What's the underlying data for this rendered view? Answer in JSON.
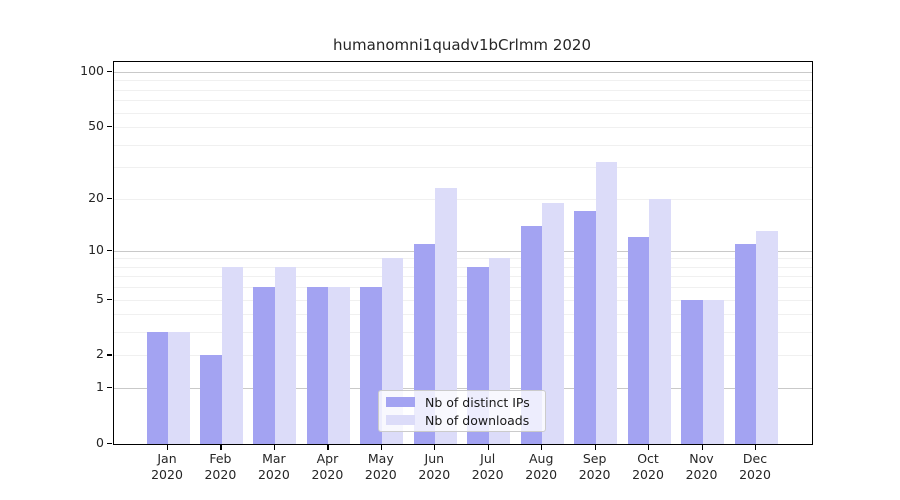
{
  "chart_data": {
    "type": "bar",
    "title": "humanomni1quadv1bCrlmm 2020",
    "categories": [
      "Jan",
      "Feb",
      "Mar",
      "Apr",
      "May",
      "Jun",
      "Jul",
      "Aug",
      "Sep",
      "Oct",
      "Nov",
      "Dec"
    ],
    "x_year_label": "2020",
    "series": [
      {
        "name": "Nb of distinct IPs",
        "color": "#a3a3f2",
        "values": [
          3,
          2,
          6,
          6,
          6,
          11,
          8,
          14,
          17,
          12,
          5,
          11
        ]
      },
      {
        "name": "Nb of downloads",
        "color": "#dcdcf9",
        "values": [
          3,
          8,
          8,
          6,
          9,
          23,
          9,
          19,
          32,
          20,
          5,
          13
        ]
      }
    ],
    "yscale": "log1p",
    "ylabel": "",
    "xlabel": "",
    "y_tick_values": [
      0,
      1,
      2,
      5,
      10,
      20,
      50,
      100
    ],
    "y_tick_labels": [
      "0",
      "1",
      "2",
      "5",
      "10",
      "20",
      "50",
      "100"
    ],
    "y_major_gridlines": [
      1,
      10,
      100
    ],
    "y_minor_gridlines": [
      2,
      3,
      4,
      5,
      6,
      7,
      8,
      9,
      20,
      30,
      40,
      50,
      60,
      70,
      80,
      90
    ],
    "ylim": [
      0,
      114
    ],
    "grid": "horizontal-only",
    "legend": {
      "position": "inside-bottom-center"
    },
    "colors": {
      "bar_distinct_ips": "#a3a3f2",
      "bar_downloads": "#dcdcf9",
      "major_grid": "#c9c9c9",
      "minor_grid": "#f0f0f0",
      "spine": "#000000",
      "text": "#262626"
    }
  }
}
